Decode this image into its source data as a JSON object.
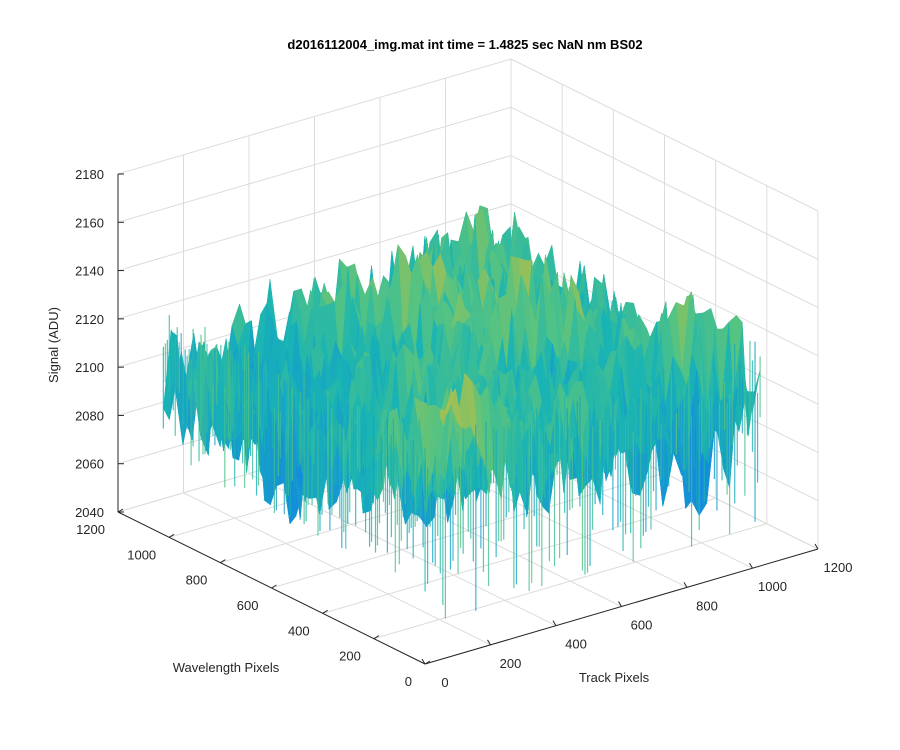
{
  "chart_data": {
    "type": "surface",
    "title": "d2016112004_img.mat int time = 1.4825 sec  NaN nm BS02",
    "xlabel": "Track Pixels",
    "ylabel": "Wavelength Pixels",
    "zlabel": "Signal (ADU)",
    "xlim": [
      0,
      1200
    ],
    "ylim": [
      0,
      1200
    ],
    "zlim": [
      2040,
      2180
    ],
    "x_ticks": [
      "0",
      "200",
      "400",
      "600",
      "800",
      "1000",
      "1200"
    ],
    "y_ticks": [
      "0",
      "200",
      "400",
      "600",
      "800",
      "1000",
      "1200"
    ],
    "z_ticks": [
      "2040",
      "2060",
      "2080",
      "2100",
      "2120",
      "2140",
      "2160",
      "2180"
    ],
    "grid": true,
    "colormap": "parula",
    "data_extent": {
      "x": [
        1,
        1024
      ],
      "y": [
        1,
        1024
      ]
    },
    "signal_mean": 2110,
    "signal_range": [
      2045,
      2175
    ]
  }
}
